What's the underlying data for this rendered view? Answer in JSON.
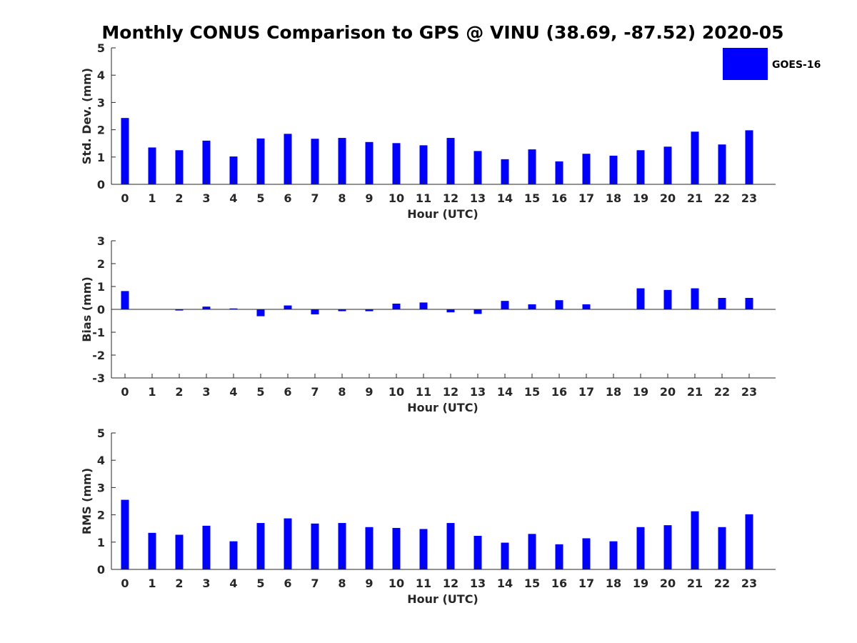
{
  "figure": {
    "title": "Monthly CONUS Comparison to GPS @ VINU (38.69, -87.52) 2020-05",
    "legend": {
      "label": "GOES-16",
      "color": "#0000ff",
      "position": "top-right"
    }
  },
  "chart_data": [
    {
      "type": "bar",
      "categories": [
        "0",
        "1",
        "2",
        "3",
        "4",
        "5",
        "6",
        "7",
        "8",
        "9",
        "10",
        "11",
        "12",
        "13",
        "14",
        "15",
        "16",
        "17",
        "18",
        "19",
        "20",
        "21",
        "22",
        "23"
      ],
      "series": [
        {
          "name": "GOES-16",
          "color": "#0000ff",
          "values": [
            2.43,
            1.35,
            1.25,
            1.6,
            1.02,
            1.68,
            1.85,
            1.67,
            1.7,
            1.55,
            1.51,
            1.43,
            1.7,
            1.22,
            0.92,
            1.28,
            0.84,
            1.12,
            1.05,
            1.25,
            1.38,
            1.93,
            1.46,
            1.98
          ]
        }
      ],
      "xlabel": "Hour (UTC)",
      "ylabel": "Std. Dev. (mm)",
      "ylim": [
        0,
        5
      ],
      "yticks": [
        "0",
        "1",
        "2",
        "3",
        "4",
        "5"
      ],
      "grid": false
    },
    {
      "type": "bar",
      "categories": [
        "0",
        "1",
        "2",
        "3",
        "4",
        "5",
        "6",
        "7",
        "8",
        "9",
        "10",
        "11",
        "12",
        "13",
        "14",
        "15",
        "16",
        "17",
        "18",
        "19",
        "20",
        "21",
        "22",
        "23"
      ],
      "series": [
        {
          "name": "GOES-16",
          "color": "#0000ff",
          "values": [
            0.8,
            0.0,
            -0.05,
            0.12,
            0.04,
            -0.3,
            0.17,
            -0.22,
            -0.08,
            -0.08,
            0.25,
            0.3,
            -0.13,
            -0.2,
            0.37,
            0.22,
            0.4,
            0.22,
            0.0,
            0.92,
            0.85,
            0.92,
            0.5,
            0.5
          ]
        }
      ],
      "xlabel": "Hour (UTC)",
      "ylabel": "Bias (mm)",
      "ylim": [
        -3,
        3
      ],
      "yticks": [
        "-3",
        "-2",
        "-1",
        "0",
        "1",
        "2",
        "3"
      ],
      "grid": false
    },
    {
      "type": "bar",
      "categories": [
        "0",
        "1",
        "2",
        "3",
        "4",
        "5",
        "6",
        "7",
        "8",
        "9",
        "10",
        "11",
        "12",
        "13",
        "14",
        "15",
        "16",
        "17",
        "18",
        "19",
        "20",
        "21",
        "22",
        "23"
      ],
      "series": [
        {
          "name": "GOES-16",
          "color": "#0000ff",
          "values": [
            2.55,
            1.34,
            1.27,
            1.6,
            1.03,
            1.7,
            1.87,
            1.68,
            1.7,
            1.55,
            1.52,
            1.48,
            1.7,
            1.23,
            0.98,
            1.3,
            0.92,
            1.14,
            1.03,
            1.55,
            1.62,
            2.13,
            1.55,
            2.02
          ]
        }
      ],
      "xlabel": "Hour (UTC)",
      "ylabel": "RMS (mm)",
      "ylim": [
        0,
        5
      ],
      "yticks": [
        "0",
        "1",
        "2",
        "3",
        "4",
        "5"
      ],
      "grid": false
    }
  ]
}
